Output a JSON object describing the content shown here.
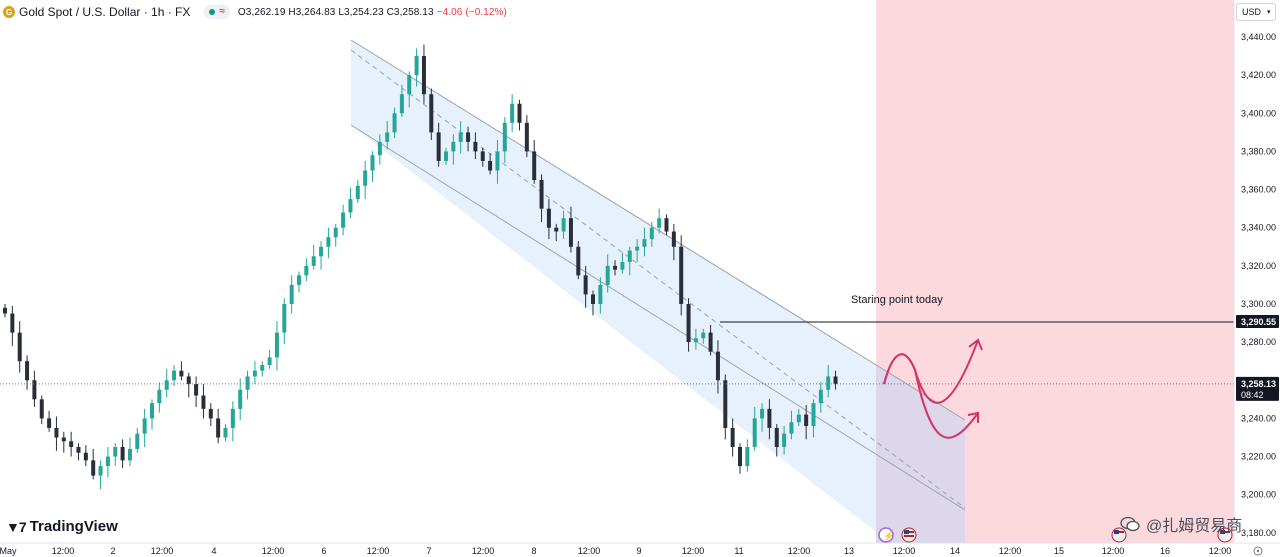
{
  "header": {
    "symbol_initial": "G",
    "title": "Gold Spot / U.S. Dollar · 1h · FX",
    "ohlc": "O3,262.19 H3,264.83 L3,254.23 C3,258.13",
    "change": "−4.06 (−0.12%)"
  },
  "currency_label": "USD",
  "brand": {
    "name": "TradingView"
  },
  "watermark": "@扎姆贸易商",
  "colors": {
    "up": "#26a69a",
    "down": "#2a2e39",
    "channel_fill": "#e3eefb",
    "forecast_zone": "#fcd9dd",
    "arrow": "#d5336a",
    "brand_gold": "#d6a21b"
  },
  "chart_data": {
    "type": "candlestick",
    "title": "Gold Spot / U.S. Dollar · 1h · FX",
    "y_axis": {
      "range": [
        3180,
        3450
      ],
      "ticks": [
        "3,440.00",
        "3,420.00",
        "3,400.00",
        "3,380.00",
        "3,360.00",
        "3,340.00",
        "3,320.00",
        "3,300.00",
        "3,280.00",
        "3,260.00",
        "3,240.00",
        "3,220.00",
        "3,200.00",
        "3,180.00"
      ]
    },
    "x_axis": {
      "labels": [
        "May",
        "12:00",
        "2",
        "12:00",
        "4",
        "12:00",
        "6",
        "12:00",
        "7",
        "12:00",
        "8",
        "12:00",
        "9",
        "12:00",
        "11",
        "12:00",
        "13",
        "12:00",
        "14",
        "12:00",
        "15",
        "12:00",
        "16",
        "12:00"
      ]
    },
    "price_labels": [
      {
        "value": 3290.55,
        "text": "3,290.55"
      },
      {
        "value": 3258.13,
        "text": "3,258.13",
        "sub": "08:42"
      }
    ],
    "annotation": {
      "text": "Staring point today",
      "level": 3290.55
    },
    "channel": {
      "type": "descending parallel channel"
    },
    "close_path": [
      3295,
      3285,
      3270,
      3260,
      3250,
      3240,
      3235,
      3230,
      3228,
      3225,
      3222,
      3218,
      3210,
      3215,
      3220,
      3225,
      3218,
      3224,
      3232,
      3240,
      3248,
      3255,
      3260,
      3265,
      3262,
      3258,
      3252,
      3245,
      3240,
      3230,
      3235,
      3245,
      3255,
      3262,
      3265,
      3268,
      3272,
      3285,
      3300,
      3310,
      3315,
      3320,
      3325,
      3330,
      3335,
      3340,
      3348,
      3355,
      3362,
      3370,
      3378,
      3385,
      3390,
      3400,
      3410,
      3420,
      3430,
      3410,
      3390,
      3375,
      3380,
      3385,
      3390,
      3385,
      3380,
      3375,
      3370,
      3380,
      3395,
      3405,
      3395,
      3380,
      3365,
      3350,
      3340,
      3338,
      3345,
      3330,
      3315,
      3305,
      3300,
      3310,
      3320,
      3318,
      3322,
      3328,
      3330,
      3334,
      3340,
      3345,
      3338,
      3330,
      3300,
      3280,
      3282,
      3285,
      3275,
      3260,
      3235,
      3225,
      3215,
      3225,
      3240,
      3245,
      3235,
      3225,
      3232,
      3238,
      3242,
      3236,
      3248,
      3255,
      3262,
      3258.13
    ]
  }
}
